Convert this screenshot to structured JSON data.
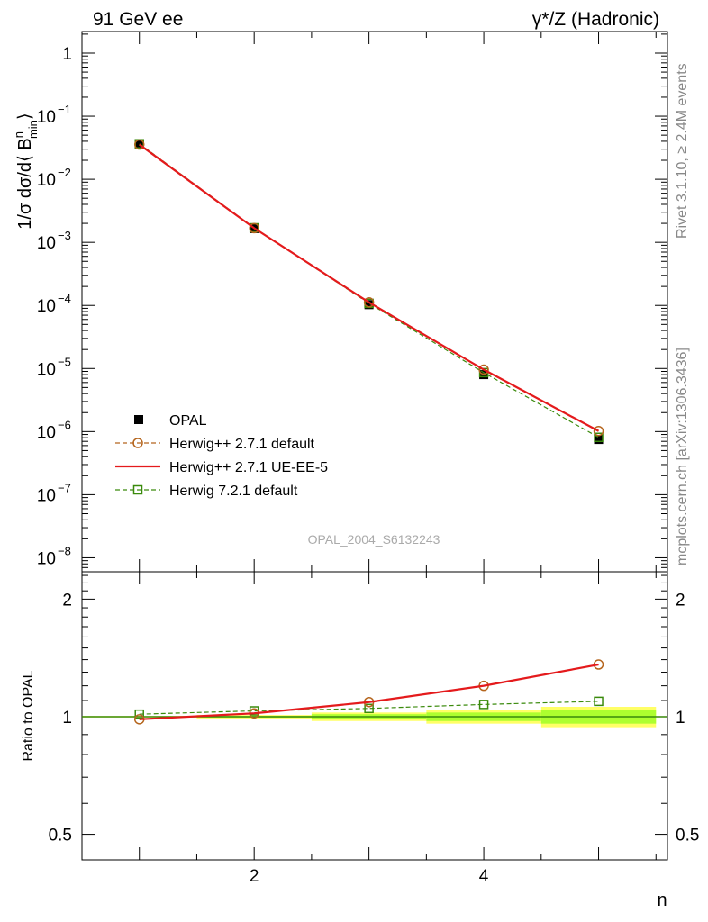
{
  "header": {
    "left": "91 GeV ee",
    "right": "γ*/Z (Hadronic)"
  },
  "side_labels": {
    "rivet": "Rivet 3.1.10, ≥ 2.4M events",
    "mcplots": "mcplots.cern.ch [arXiv:1306.3436]"
  },
  "watermark": "OPAL_2004_S6132243",
  "colors": {
    "data": "#000000",
    "herwigpp_default": "#b5651d",
    "herwigpp_ueee5": "#e41a1c",
    "herwig7": "#3a8a0c",
    "band_inner": "#adff2f",
    "band_outer": "#ffff66"
  },
  "chart_data": [
    {
      "type": "line",
      "panel": "main",
      "ylabel": "1/σ dσ/d⟨ B",
      "ylabel_sup": "n",
      "ylabel_sub": "min",
      "ylabel_end": "⟩",
      "yscale": "log",
      "xlim": [
        0.5,
        5.6
      ],
      "ylim": [
        6e-09,
        2.2
      ],
      "yticks": [
        {
          "v": 1,
          "m": "1",
          "e": ""
        },
        {
          "v": 0.1,
          "m": "10",
          "e": "−1"
        },
        {
          "v": 0.01,
          "m": "10",
          "e": "−2"
        },
        {
          "v": 0.001,
          "m": "10",
          "e": "−3"
        },
        {
          "v": 0.0001,
          "m": "10",
          "e": "−4"
        },
        {
          "v": 1e-05,
          "m": "10",
          "e": "−5"
        },
        {
          "v": 1e-06,
          "m": "10",
          "e": "−6"
        },
        {
          "v": 1e-07,
          "m": "10",
          "e": "−7"
        },
        {
          "v": 1e-08,
          "m": "10",
          "e": "−8"
        }
      ],
      "legend": "lower-left",
      "x": [
        1,
        2,
        3,
        4,
        5
      ],
      "series": [
        {
          "key": "opal",
          "name": "OPAL",
          "marker": "square-filled",
          "values": [
            0.036,
            0.00165,
            0.000103,
            8e-06,
            7.5e-07
          ]
        },
        {
          "key": "hpp_def",
          "name": "Herwig++ 2.7.1 default",
          "marker": "circle-open",
          "dash": true,
          "values": [
            0.0355,
            0.00168,
            0.000112,
            9.6e-06,
            1.02e-06
          ]
        },
        {
          "key": "hpp_ue",
          "name": "Herwig++ 2.7.1 UE-EE-5",
          "marker": "none",
          "dash": false,
          "values": [
            0.0355,
            0.00168,
            0.000112,
            9.6e-06,
            1.02e-06
          ]
        },
        {
          "key": "hw7",
          "name": "Herwig 7.2.1 default",
          "marker": "square-open",
          "dash": true,
          "values": [
            0.0365,
            0.0017,
            0.000108,
            8.6e-06,
            8.1e-07
          ]
        }
      ]
    },
    {
      "type": "line",
      "panel": "ratio",
      "ylabel": "Ratio to OPAL",
      "xlabel": "n",
      "yscale": "log",
      "xlim": [
        0.5,
        5.6
      ],
      "ylim": [
        0.43,
        2.35
      ],
      "xticks": [
        2,
        4
      ],
      "yticks": [
        {
          "v": 2,
          "l": "2"
        },
        {
          "v": 1,
          "l": "1"
        },
        {
          "v": 0.5,
          "l": "0.5"
        }
      ],
      "x": [
        1,
        2,
        3,
        4,
        5
      ],
      "bands": [
        {
          "x": [
            0.5,
            1.5
          ],
          "inner": [
            0.998,
            1.002
          ],
          "outer": [
            0.996,
            1.004
          ]
        },
        {
          "x": [
            1.5,
            2.5
          ],
          "inner": [
            0.995,
            1.005
          ],
          "outer": [
            0.99,
            1.01
          ]
        },
        {
          "x": [
            2.5,
            3.5
          ],
          "inner": [
            0.985,
            1.015
          ],
          "outer": [
            0.975,
            1.025
          ]
        },
        {
          "x": [
            3.5,
            4.5
          ],
          "inner": [
            0.975,
            1.025
          ],
          "outer": [
            0.96,
            1.04
          ]
        },
        {
          "x": [
            4.5,
            5.5
          ],
          "inner": [
            0.96,
            1.04
          ],
          "outer": [
            0.94,
            1.06
          ]
        }
      ],
      "series": [
        {
          "key": "hpp_def",
          "marker": "circle-open",
          "dash": true,
          "values": [
            0.985,
            1.02,
            1.09,
            1.2,
            1.36
          ]
        },
        {
          "key": "hpp_ue",
          "marker": "none",
          "dash": false,
          "values": [
            0.985,
            1.02,
            1.09,
            1.2,
            1.36
          ]
        },
        {
          "key": "hw7",
          "marker": "square-open",
          "dash": true,
          "values": [
            1.015,
            1.035,
            1.05,
            1.075,
            1.095
          ]
        }
      ]
    }
  ]
}
